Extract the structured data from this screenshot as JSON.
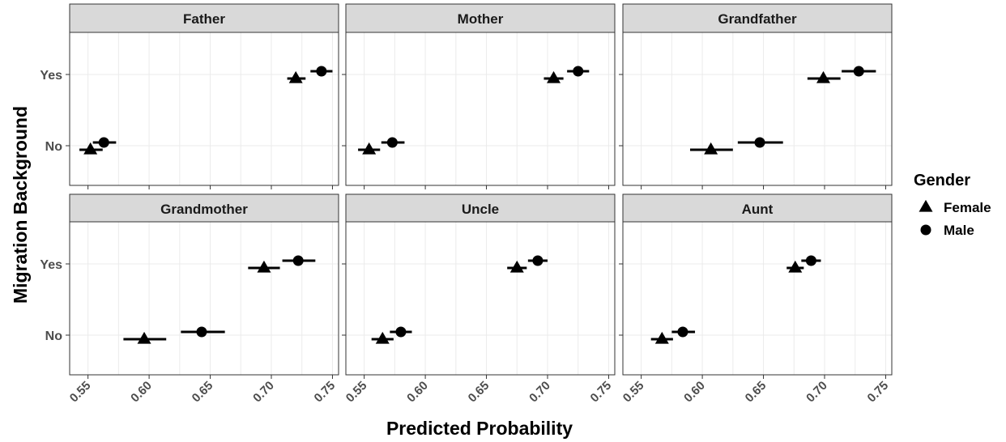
{
  "chart_data": {
    "type": "scatter",
    "xlabel": "Predicted Probability",
    "ylabel": "Migration Background",
    "xlim": [
      0.535,
      0.755
    ],
    "x_ticks": [
      "0.55",
      "0.60",
      "0.65",
      "0.70",
      "0.75"
    ],
    "y_categories": [
      "No",
      "Yes"
    ],
    "legend": {
      "title": "Gender",
      "position": "right",
      "entries": [
        {
          "label": "Female",
          "shape": "triangle"
        },
        {
          "label": "Male",
          "shape": "circle"
        }
      ]
    },
    "grid": true,
    "colors": {
      "strip_fill": "#d9d9d9",
      "grid": "#ebebeb",
      "marks": "#000000"
    },
    "panels": [
      {
        "title": "Father",
        "points": [
          {
            "gender": "Female",
            "migration": "Yes",
            "x": 0.72,
            "lo": 0.713,
            "hi": 0.728
          },
          {
            "gender": "Male",
            "migration": "Yes",
            "x": 0.741,
            "lo": 0.732,
            "hi": 0.75
          },
          {
            "gender": "Female",
            "migration": "No",
            "x": 0.552,
            "lo": 0.543,
            "hi": 0.562
          },
          {
            "gender": "Male",
            "migration": "No",
            "x": 0.563,
            "lo": 0.554,
            "hi": 0.573
          }
        ]
      },
      {
        "title": "Mother",
        "points": [
          {
            "gender": "Female",
            "migration": "Yes",
            "x": 0.705,
            "lo": 0.697,
            "hi": 0.713
          },
          {
            "gender": "Male",
            "migration": "Yes",
            "x": 0.725,
            "lo": 0.716,
            "hi": 0.734
          },
          {
            "gender": "Female",
            "migration": "No",
            "x": 0.554,
            "lo": 0.545,
            "hi": 0.563
          },
          {
            "gender": "Male",
            "migration": "No",
            "x": 0.573,
            "lo": 0.564,
            "hi": 0.583
          }
        ]
      },
      {
        "title": "Grandfather",
        "points": [
          {
            "gender": "Female",
            "migration": "Yes",
            "x": 0.699,
            "lo": 0.686,
            "hi": 0.713
          },
          {
            "gender": "Male",
            "migration": "Yes",
            "x": 0.728,
            "lo": 0.714,
            "hi": 0.742
          },
          {
            "gender": "Female",
            "migration": "No",
            "x": 0.607,
            "lo": 0.59,
            "hi": 0.625
          },
          {
            "gender": "Male",
            "migration": "No",
            "x": 0.647,
            "lo": 0.629,
            "hi": 0.666
          }
        ]
      },
      {
        "title": "Grandmother",
        "points": [
          {
            "gender": "Female",
            "migration": "Yes",
            "x": 0.694,
            "lo": 0.681,
            "hi": 0.707
          },
          {
            "gender": "Male",
            "migration": "Yes",
            "x": 0.722,
            "lo": 0.709,
            "hi": 0.736
          },
          {
            "gender": "Female",
            "migration": "No",
            "x": 0.596,
            "lo": 0.579,
            "hi": 0.614
          },
          {
            "gender": "Male",
            "migration": "No",
            "x": 0.643,
            "lo": 0.626,
            "hi": 0.662
          }
        ]
      },
      {
        "title": "Uncle",
        "points": [
          {
            "gender": "Female",
            "migration": "Yes",
            "x": 0.675,
            "lo": 0.667,
            "hi": 0.683
          },
          {
            "gender": "Male",
            "migration": "Yes",
            "x": 0.692,
            "lo": 0.684,
            "hi": 0.7
          },
          {
            "gender": "Female",
            "migration": "No",
            "x": 0.565,
            "lo": 0.556,
            "hi": 0.574
          },
          {
            "gender": "Male",
            "migration": "No",
            "x": 0.58,
            "lo": 0.571,
            "hi": 0.589
          }
        ]
      },
      {
        "title": "Aunt",
        "points": [
          {
            "gender": "Female",
            "migration": "Yes",
            "x": 0.676,
            "lo": 0.669,
            "hi": 0.683
          },
          {
            "gender": "Male",
            "migration": "Yes",
            "x": 0.689,
            "lo": 0.681,
            "hi": 0.697
          },
          {
            "gender": "Female",
            "migration": "No",
            "x": 0.567,
            "lo": 0.558,
            "hi": 0.576
          },
          {
            "gender": "Male",
            "migration": "No",
            "x": 0.584,
            "lo": 0.575,
            "hi": 0.594
          }
        ]
      }
    ]
  }
}
